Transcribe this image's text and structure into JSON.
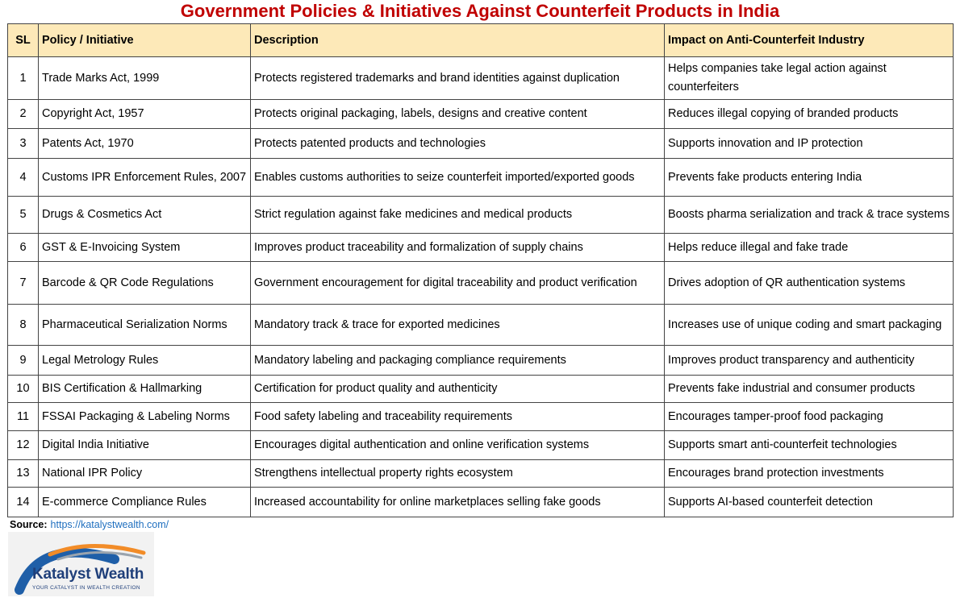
{
  "title": "Government Policies & Initiatives Against Counterfeit Products in India",
  "headers": {
    "sl": "SL",
    "policy": "Policy / Initiative",
    "description": "Description",
    "impact": "Impact on Anti-Counterfeit Industry"
  },
  "rows": [
    {
      "sl": "1",
      "policy": "Trade Marks Act, 1999",
      "description": "Protects registered trademarks and brand identities against duplication",
      "impact": "Helps companies take legal action against counterfeiters"
    },
    {
      "sl": "2",
      "policy": "Copyright Act, 1957",
      "description": "Protects original packaging, labels, designs and creative content",
      "impact": "Reduces illegal copying of branded products"
    },
    {
      "sl": "3",
      "policy": "Patents Act, 1970",
      "description": "Protects patented products and technologies",
      "impact": "Supports innovation and IP protection"
    },
    {
      "sl": "4",
      "policy": "Customs IPR Enforcement Rules, 2007",
      "description": "Enables customs authorities to seize counterfeit imported/exported goods",
      "impact": "Prevents fake products entering India"
    },
    {
      "sl": "5",
      "policy": "Drugs & Cosmetics Act",
      "description": "Strict regulation against fake medicines and medical products",
      "impact": "Boosts pharma serialization and track & trace systems"
    },
    {
      "sl": "6",
      "policy": "GST & E-Invoicing System",
      "description": "Improves product traceability and formalization of supply chains",
      "impact": "Helps reduce illegal and fake trade"
    },
    {
      "sl": "7",
      "policy": "Barcode & QR Code Regulations",
      "description": "Government encouragement for digital traceability and product verification",
      "impact": "Drives adoption of QR authentication systems"
    },
    {
      "sl": "8",
      "policy": "Pharmaceutical Serialization Norms",
      "description": "Mandatory track & trace for exported medicines",
      "impact": "Increases use of unique coding and smart packaging"
    },
    {
      "sl": "9",
      "policy": "Legal Metrology Rules",
      "description": "Mandatory labeling and packaging compliance requirements",
      "impact": "Improves product transparency and authenticity"
    },
    {
      "sl": "10",
      "policy": "BIS Certification & Hallmarking",
      "description": "Certification for product quality and authenticity",
      "impact": "Prevents fake industrial and consumer products"
    },
    {
      "sl": "11",
      "policy": "FSSAI Packaging & Labeling Norms",
      "description": "Food safety labeling and traceability requirements",
      "impact": "Encourages tamper-proof food packaging"
    },
    {
      "sl": "12",
      "policy": "Digital India Initiative",
      "description": "Encourages digital authentication and online verification systems",
      "impact": "Supports smart anti-counterfeit technologies"
    },
    {
      "sl": "13",
      "policy": "National IPR Policy",
      "description": "Strengthens intellectual property rights ecosystem",
      "impact": "Encourages brand protection investments"
    },
    {
      "sl": "14",
      "policy": "E-commerce Compliance Rules",
      "description": "Increased accountability for online marketplaces selling fake goods",
      "impact": "Supports AI-based counterfeit detection"
    }
  ],
  "source": {
    "label": "Source:",
    "url": "https://katalystwealth.com/"
  },
  "logo": {
    "name": "Katalyst Wealth",
    "tagline": "YOUR CATALYST IN WEALTH CREATION",
    "icon": "swoosh-logo-icon"
  },
  "colors": {
    "title": "#c00000",
    "header_bg": "#fde9b8",
    "link": "#1f6fbf",
    "logo_text": "#1f3f7a",
    "logo_swoosh_blue": "#1f5fa8",
    "logo_swoosh_orange": "#f28c28"
  }
}
